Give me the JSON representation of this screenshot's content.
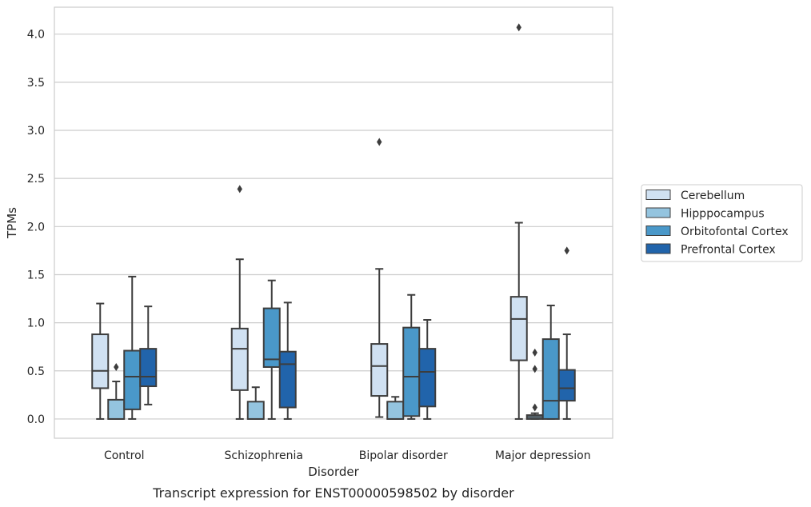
{
  "chart_data": {
    "type": "box",
    "xlabel": "Disorder",
    "ylabel": "TPMs",
    "caption": "Transcript expression for ENST00000598502 by disorder",
    "ylim": [
      -0.2,
      4.28
    ],
    "yticks": [
      "0.0",
      "0.5",
      "1.0",
      "1.5",
      "2.0",
      "2.5",
      "3.0",
      "3.5",
      "4.0"
    ],
    "grid": "horizontal",
    "legend_position": "right",
    "categories": [
      "Control",
      "Schizophrenia",
      "Bipolar disorder",
      "Major depression"
    ],
    "series": [
      {
        "name": "Cerebellum",
        "color": "#d0e1f2",
        "boxes": [
          {
            "min": 0.0,
            "q1": 0.32,
            "median": 0.5,
            "q3": 0.88,
            "max": 1.2,
            "outliers": []
          },
          {
            "min": 0.0,
            "q1": 0.3,
            "median": 0.73,
            "q3": 0.94,
            "max": 1.66,
            "outliers": [
              2.39
            ]
          },
          {
            "min": 0.02,
            "q1": 0.24,
            "median": 0.55,
            "q3": 0.78,
            "max": 1.56,
            "outliers": [
              2.88
            ]
          },
          {
            "min": 0.0,
            "q1": 0.61,
            "median": 1.04,
            "q3": 1.27,
            "max": 2.04,
            "outliers": [
              4.07
            ]
          }
        ]
      },
      {
        "name": "Hipppocampus",
        "color": "#94c4df",
        "boxes": [
          {
            "min": 0.0,
            "q1": 0.0,
            "median": 0.0,
            "q3": 0.2,
            "max": 0.39,
            "outliers": [
              0.54
            ]
          },
          {
            "min": 0.0,
            "q1": 0.0,
            "median": 0.0,
            "q3": 0.18,
            "max": 0.33,
            "outliers": []
          },
          {
            "min": 0.0,
            "q1": 0.0,
            "median": 0.0,
            "q3": 0.18,
            "max": 0.23,
            "outliers": []
          },
          {
            "min": 0.0,
            "q1": 0.0,
            "median": 0.02,
            "q3": 0.04,
            "max": 0.06,
            "outliers": [
              0.12,
              0.52,
              0.69
            ]
          }
        ]
      },
      {
        "name": "Orbitofontal Cortex",
        "color": "#4a98c9",
        "boxes": [
          {
            "min": 0.0,
            "q1": 0.1,
            "median": 0.44,
            "q3": 0.71,
            "max": 1.48,
            "outliers": []
          },
          {
            "min": 0.0,
            "q1": 0.54,
            "median": 0.62,
            "q3": 1.15,
            "max": 1.44,
            "outliers": []
          },
          {
            "min": 0.0,
            "q1": 0.03,
            "median": 0.44,
            "q3": 0.95,
            "max": 1.29,
            "outliers": []
          },
          {
            "min": 0.0,
            "q1": 0.0,
            "median": 0.19,
            "q3": 0.83,
            "max": 1.18,
            "outliers": []
          }
        ]
      },
      {
        "name": "Prefrontal Cortex",
        "color": "#2164ab",
        "boxes": [
          {
            "min": 0.15,
            "q1": 0.34,
            "median": 0.44,
            "q3": 0.73,
            "max": 1.17,
            "outliers": []
          },
          {
            "min": 0.0,
            "q1": 0.12,
            "median": 0.57,
            "q3": 0.7,
            "max": 1.21,
            "outliers": []
          },
          {
            "min": 0.0,
            "q1": 0.13,
            "median": 0.49,
            "q3": 0.73,
            "max": 1.03,
            "outliers": []
          },
          {
            "min": 0.0,
            "q1": 0.19,
            "median": 0.32,
            "q3": 0.51,
            "max": 0.88,
            "outliers": [
              1.75
            ]
          }
        ]
      }
    ]
  }
}
